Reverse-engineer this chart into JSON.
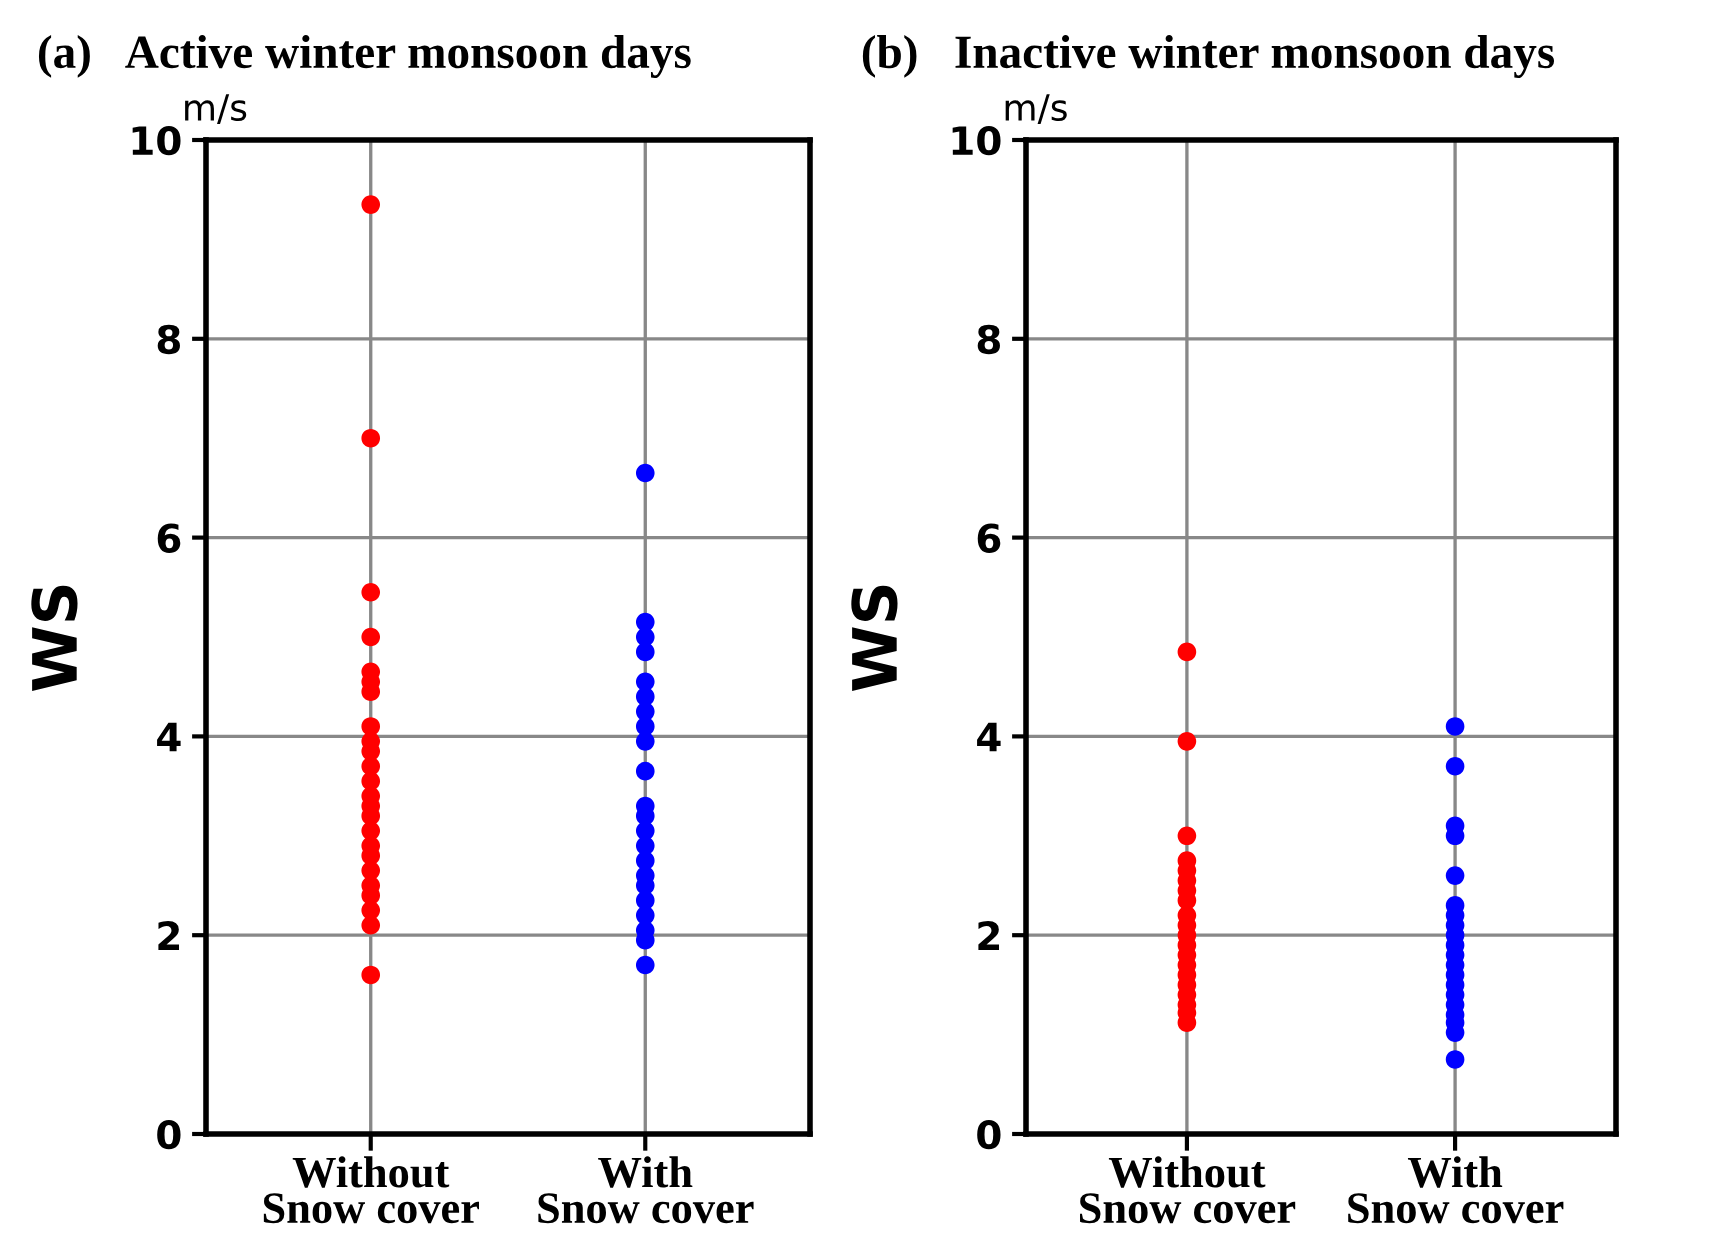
{
  "chart_data": [
    {
      "type": "scatter",
      "title": "(a)   Active winter monsoon days",
      "ylabel": "WS",
      "annotations": [
        "m/s"
      ],
      "categories": [
        "Without\nSnow cover",
        "With\nSnow cover"
      ],
      "ylim": [
        0,
        10
      ],
      "yticks": [
        0,
        2,
        4,
        6,
        8,
        10
      ],
      "grid": true,
      "marker": "circle",
      "series": [
        {
          "color": "#ff0000",
          "x": [
            "Without\nSnow cover",
            "Without\nSnow cover",
            "Without\nSnow cover",
            "Without\nSnow cover",
            "Without\nSnow cover",
            "Without\nSnow cover",
            "Without\nSnow cover",
            "Without\nSnow cover",
            "Without\nSnow cover",
            "Without\nSnow cover",
            "Without\nSnow cover",
            "Without\nSnow cover",
            "Without\nSnow cover",
            "Without\nSnow cover",
            "Without\nSnow cover",
            "Without\nSnow cover",
            "Without\nSnow cover",
            "Without\nSnow cover",
            "Without\nSnow cover",
            "Without\nSnow cover",
            "Without\nSnow cover",
            "Without\nSnow cover",
            "Without\nSnow cover",
            "Without\nSnow cover"
          ],
          "values": [
            9.35,
            7.0,
            5.45,
            5.0,
            4.65,
            4.55,
            4.45,
            4.1,
            3.95,
            3.85,
            3.7,
            3.55,
            3.4,
            3.3,
            3.2,
            3.05,
            2.9,
            2.8,
            2.65,
            2.5,
            2.4,
            2.25,
            2.1,
            1.6
          ]
        },
        {
          "color": "#0000ff",
          "x": [
            "With\nSnow cover",
            "With\nSnow cover",
            "With\nSnow cover",
            "With\nSnow cover",
            "With\nSnow cover",
            "With\nSnow cover",
            "With\nSnow cover",
            "With\nSnow cover",
            "With\nSnow cover",
            "With\nSnow cover",
            "With\nSnow cover",
            "With\nSnow cover",
            "With\nSnow cover",
            "With\nSnow cover",
            "With\nSnow cover",
            "With\nSnow cover",
            "With\nSnow cover",
            "With\nSnow cover",
            "With\nSnow cover",
            "With\nSnow cover",
            "With\nSnow cover",
            "With\nSnow cover"
          ],
          "values": [
            6.65,
            5.15,
            5.0,
            4.85,
            4.55,
            4.4,
            4.25,
            4.1,
            3.95,
            3.65,
            3.3,
            3.2,
            3.05,
            2.9,
            2.75,
            2.6,
            2.5,
            2.35,
            2.2,
            2.05,
            1.95,
            1.7
          ]
        }
      ]
    },
    {
      "type": "scatter",
      "title": "(b)   Inactive winter monsoon days",
      "ylabel": "WS",
      "annotations": [
        "m/s"
      ],
      "categories": [
        "Without\nSnow cover",
        "With\nSnow cover"
      ],
      "ylim": [
        0,
        10
      ],
      "yticks": [
        0,
        2,
        4,
        6,
        8,
        10
      ],
      "grid": true,
      "marker": "circle",
      "series": [
        {
          "color": "#ff0000",
          "x": [
            "Without\nSnow cover",
            "Without\nSnow cover",
            "Without\nSnow cover",
            "Without\nSnow cover",
            "Without\nSnow cover",
            "Without\nSnow cover",
            "Without\nSnow cover",
            "Without\nSnow cover",
            "Without\nSnow cover",
            "Without\nSnow cover",
            "Without\nSnow cover",
            "Without\nSnow cover",
            "Without\nSnow cover",
            "Without\nSnow cover",
            "Without\nSnow cover",
            "Without\nSnow cover",
            "Without\nSnow cover",
            "Without\nSnow cover",
            "Without\nSnow cover",
            "Without\nSnow cover"
          ],
          "values": [
            4.85,
            3.95,
            3.0,
            2.75,
            2.65,
            2.55,
            2.45,
            2.35,
            2.2,
            2.1,
            2.0,
            1.9,
            1.8,
            1.7,
            1.6,
            1.5,
            1.4,
            1.3,
            1.22,
            1.12
          ]
        },
        {
          "color": "#0000ff",
          "x": [
            "With\nSnow cover",
            "With\nSnow cover",
            "With\nSnow cover",
            "With\nSnow cover",
            "With\nSnow cover",
            "With\nSnow cover",
            "With\nSnow cover",
            "With\nSnow cover",
            "With\nSnow cover",
            "With\nSnow cover",
            "With\nSnow cover",
            "With\nSnow cover",
            "With\nSnow cover",
            "With\nSnow cover",
            "With\nSnow cover",
            "With\nSnow cover",
            "With\nSnow cover",
            "With\nSnow cover",
            "With\nSnow cover",
            "With\nSnow cover"
          ],
          "values": [
            4.1,
            3.7,
            3.1,
            3.0,
            2.6,
            2.3,
            2.2,
            2.1,
            2.0,
            1.9,
            1.8,
            1.7,
            1.6,
            1.5,
            1.4,
            1.3,
            1.2,
            1.12,
            1.02,
            0.75
          ]
        }
      ]
    }
  ]
}
